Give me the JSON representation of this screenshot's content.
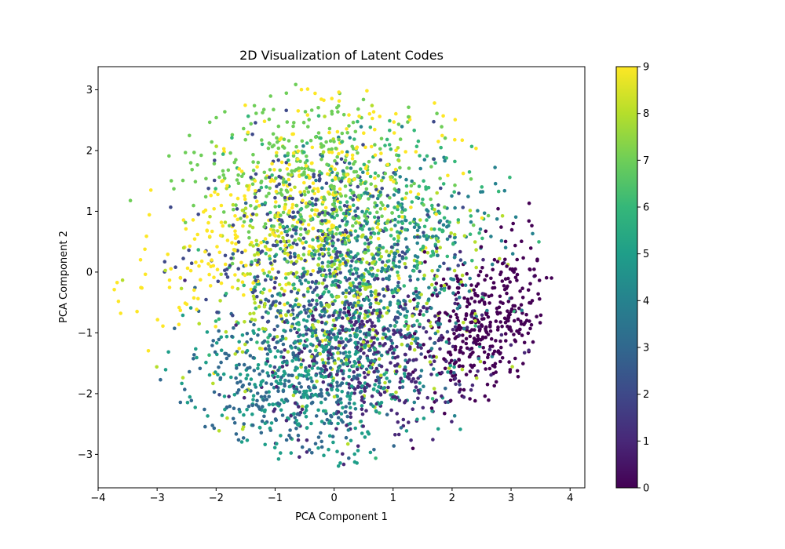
{
  "chart_data": {
    "type": "scatter",
    "title": "2D Visualization of Latent Codes",
    "xlabel": "PCA Component 1",
    "ylabel": "PCA Component 2",
    "xlim": [
      -4.0,
      4.25
    ],
    "ylim": [
      -3.55,
      3.38
    ],
    "x_ticks": [
      -4,
      -3,
      -2,
      -1,
      0,
      1,
      2,
      3,
      4
    ],
    "y_ticks": [
      -3,
      -2,
      -1,
      0,
      1,
      2,
      3
    ],
    "x_tick_labels": [
      "−4",
      "−3",
      "−2",
      "−1",
      "0",
      "1",
      "2",
      "3",
      "4"
    ],
    "y_tick_labels": [
      "−3",
      "−2",
      "−1",
      "0",
      "1",
      "2",
      "3"
    ],
    "grid": false,
    "colormap": "viridis",
    "colormap_stops": [
      "#440154",
      "#482878",
      "#3e4989",
      "#31688e",
      "#26828e",
      "#1f9e89",
      "#35b779",
      "#6ece58",
      "#b5de2b",
      "#fde725"
    ],
    "colorbar": {
      "range": [
        0,
        9
      ],
      "ticks": [
        0,
        1,
        2,
        3,
        4,
        5,
        6,
        7,
        8,
        9
      ],
      "tick_labels": [
        "0",
        "1",
        "2",
        "3",
        "4",
        "5",
        "6",
        "7",
        "8",
        "9"
      ]
    },
    "series": [
      {
        "class": 0,
        "center": [
          2.55,
          -0.85
        ],
        "spread": [
          0.55,
          0.65
        ],
        "corr": 0.25
      },
      {
        "class": 1,
        "center": [
          0.75,
          -1.4
        ],
        "spread": [
          0.85,
          0.7
        ],
        "corr": 0.1
      },
      {
        "class": 2,
        "center": [
          -0.2,
          0.3
        ],
        "spread": [
          1.0,
          0.95
        ],
        "corr": 0.0
      },
      {
        "class": 3,
        "center": [
          -0.6,
          -1.6
        ],
        "spread": [
          1.0,
          0.75
        ],
        "corr": 0.1
      },
      {
        "class": 4,
        "center": [
          0.9,
          0.1
        ],
        "spread": [
          1.0,
          1.0
        ],
        "corr": 0.1
      },
      {
        "class": 5,
        "center": [
          -0.4,
          -1.75
        ],
        "spread": [
          1.0,
          0.7
        ],
        "corr": 0.05
      },
      {
        "class": 6,
        "center": [
          0.5,
          0.35
        ],
        "spread": [
          1.0,
          1.0
        ],
        "corr": 0.05
      },
      {
        "class": 7,
        "center": [
          -0.3,
          1.55
        ],
        "spread": [
          1.0,
          0.75
        ],
        "corr": -0.1
      },
      {
        "class": 8,
        "center": [
          0.0,
          -0.2
        ],
        "spread": [
          1.15,
          0.9
        ],
        "corr": 0.0
      },
      {
        "class": 9,
        "center": [
          -0.7,
          1.1
        ],
        "spread": [
          1.25,
          0.95
        ],
        "corr": 0.55
      }
    ]
  }
}
